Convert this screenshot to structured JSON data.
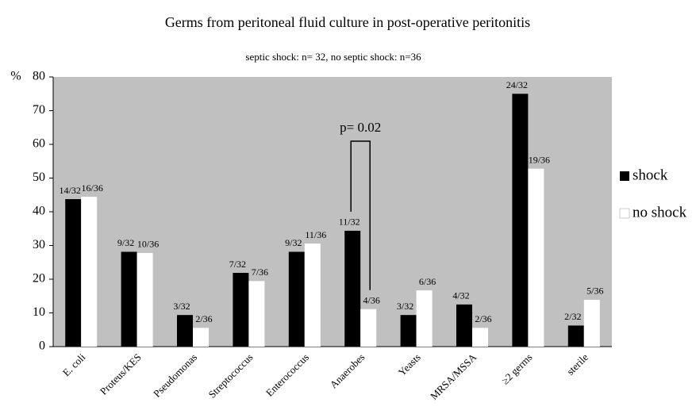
{
  "chart_data": {
    "type": "bar",
    "title": "Germs from peritoneal fluid culture in post-operative peritonitis",
    "subtitle": "septic shock: n= 32,   no septic shock: n=36",
    "y_label": "%",
    "annotation": "p= 0.02",
    "categories": [
      "E. coli",
      "Proteus/KES",
      "Pseudomonas",
      "Streptococcus",
      "Enterococcus",
      "Anaerobes",
      "Yeasts",
      "MRSA/MSSA",
      "≥2 germs",
      "sterile"
    ],
    "series": [
      {
        "name": "shock",
        "color": "#000000",
        "values": [
          43.75,
          28.125,
          9.375,
          21.875,
          28.125,
          34.375,
          9.375,
          12.5,
          75,
          6.25
        ],
        "value_labels": [
          "14/32",
          "9/32",
          "3/32",
          "7/32",
          "9/32",
          "11/32",
          "3/32",
          "4/32",
          "24/32",
          "2/32"
        ]
      },
      {
        "name": "no shock",
        "color": "#ffffff",
        "values": [
          44.44,
          27.78,
          5.56,
          19.44,
          30.56,
          11.11,
          16.67,
          5.56,
          52.78,
          13.89
        ],
        "value_labels": [
          "16/36",
          "10/36",
          "2/36",
          "7/36",
          "11/36",
          "4/36",
          "6/36",
          "2/36",
          "19/36",
          "5/36"
        ]
      }
    ],
    "ylim": [
      0,
      80
    ],
    "yticks": [
      0,
      10,
      20,
      30,
      40,
      50,
      60,
      70,
      80
    ],
    "grid": false,
    "legend": "right"
  }
}
